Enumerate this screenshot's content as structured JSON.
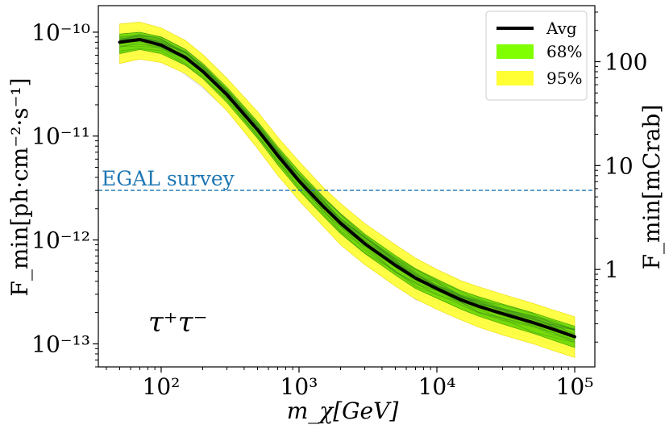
{
  "chart_data": {
    "type": "area",
    "title": "",
    "xlabel": "m_χ[GeV]",
    "ylabel": "F_min[ph·cm⁻²·s⁻¹]",
    "ylabel_right": "F_min[mCrab]",
    "xscale": "log",
    "yscale": "log",
    "xlim": [
      35,
      140000
    ],
    "ylim": [
      6e-14,
      1.8e-10
    ],
    "x_ticks": [
      {
        "value": 100,
        "label": "10²"
      },
      {
        "value": 1000,
        "label": "10³"
      },
      {
        "value": 10000,
        "label": "10⁴"
      },
      {
        "value": 100000,
        "label": "10⁵"
      }
    ],
    "y_ticks": [
      {
        "value": 1e-10,
        "label": "10⁻¹⁰"
      },
      {
        "value": 1e-11,
        "label": "10⁻¹¹"
      },
      {
        "value": 1e-12,
        "label": "10⁻¹²"
      },
      {
        "value": 1e-13,
        "label": "10⁻¹³"
      }
    ],
    "y2_ticks": [
      {
        "value": 1,
        "label": "1"
      },
      {
        "value": 10,
        "label": "10"
      },
      {
        "value": 100,
        "label": "100"
      }
    ],
    "crab_factor": 5.2e-13,
    "annotation": "τ⁺τ⁻",
    "hline": {
      "value": 3e-12,
      "label": "EGAL survey",
      "color": "#1f77b4"
    },
    "legend_position": "top-right",
    "legend": [
      {
        "label": "Avg",
        "kind": "line",
        "color": "#000000"
      },
      {
        "label": "68%",
        "kind": "patch",
        "color": "#7fff00"
      },
      {
        "label": "95%",
        "kind": "patch",
        "color": "#ffff33"
      }
    ],
    "x": [
      50,
      70,
      100,
      150,
      200,
      300,
      500,
      700,
      1000,
      1500,
      2000,
      3000,
      5000,
      7000,
      10000,
      15000,
      20000,
      30000,
      50000,
      70000,
      100000
    ],
    "series": [
      {
        "name": "Avg",
        "values": [
          8e-11,
          8.5e-11,
          7.5e-11,
          5.7e-11,
          4.2e-11,
          2.5e-11,
          1.15e-11,
          6.5e-12,
          3.7e-12,
          2.1e-12,
          1.45e-12,
          9.2e-13,
          5.7e-13,
          4.3e-13,
          3.4e-13,
          2.65e-13,
          2.3e-13,
          1.95e-13,
          1.6e-13,
          1.38e-13,
          1.17e-13
        ]
      },
      {
        "name": "68%",
        "lower": [
          6.2e-11,
          6.8e-11,
          6.2e-11,
          4.8e-11,
          3.6e-11,
          2.1e-11,
          9.5e-12,
          5.3e-12,
          3e-12,
          1.7e-12,
          1.15e-12,
          7.4e-13,
          4.6e-13,
          3.4e-13,
          2.75e-13,
          2.15e-13,
          1.85e-13,
          1.55e-13,
          1.26e-13,
          1.08e-13,
          9.2e-14
        ],
        "upper": [
          9.6e-11,
          1e-10,
          9e-11,
          6.8e-11,
          5e-11,
          2.95e-11,
          1.38e-11,
          7.9e-12,
          4.6e-12,
          2.6e-12,
          1.8e-12,
          1.14e-12,
          7.1e-13,
          5.3e-13,
          4.2e-13,
          3.25e-13,
          2.85e-13,
          2.42e-13,
          1.99e-13,
          1.72e-13,
          1.48e-13
        ]
      },
      {
        "name": "95%",
        "lower": [
          5e-11,
          5.5e-11,
          5.1e-11,
          4e-11,
          3e-11,
          1.75e-11,
          7.6e-12,
          4.2e-12,
          2.4e-12,
          1.35e-12,
          9e-13,
          5.8e-13,
          3.6e-13,
          2.7e-13,
          2.15e-13,
          1.7e-13,
          1.45e-13,
          1.22e-13,
          1e-13,
          8.6e-14,
          7.4e-14
        ],
        "upper": [
          1.2e-10,
          1.25e-10,
          1.1e-10,
          8.3e-11,
          6.1e-11,
          3.6e-11,
          1.72e-11,
          9.8e-12,
          5.7e-12,
          3.2e-12,
          2.25e-12,
          1.44e-12,
          9e-13,
          6.7e-13,
          5.2e-13,
          4.05e-13,
          3.55e-13,
          3e-13,
          2.45e-13,
          2.12e-13,
          1.82e-13
        ]
      }
    ]
  }
}
